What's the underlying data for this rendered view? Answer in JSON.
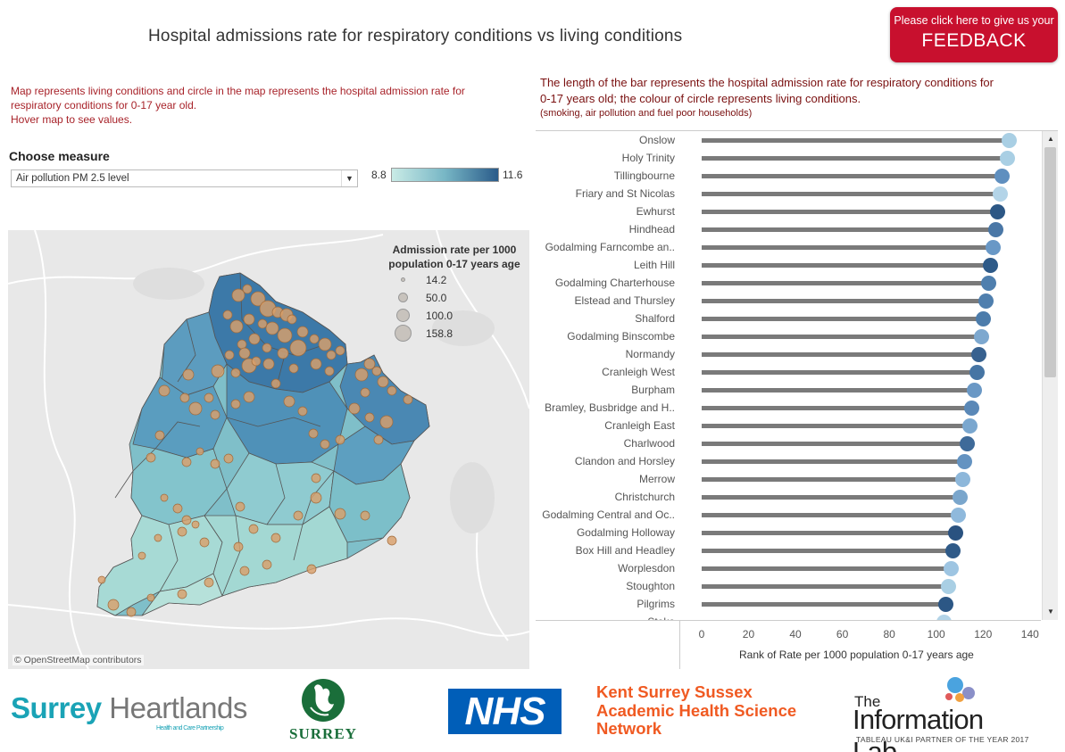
{
  "title": "Hospital admissions rate for respiratory conditions vs living conditions",
  "feedback": {
    "line1": "Please click here to give us your",
    "line2": "FEEDBACK"
  },
  "left_description": {
    "line1": "Map represents living conditions and circle in the map represents the hospital admission rate for",
    "line2": "respiratory conditions for 0-17 year old.",
    "line3": "Hover map to see values."
  },
  "measure": {
    "label": "Choose measure",
    "selected": "Air pollution PM 2.5 level"
  },
  "color_legend": {
    "min": "8.8",
    "max": "11.6",
    "colors": [
      "#c9ebe6",
      "#77b6c5",
      "#2a5b8a"
    ]
  },
  "size_legend": {
    "title_line1": "Admission rate per 1000",
    "title_line2": "population 0-17 years age",
    "values": [
      "14.2",
      "50.0",
      "100.0",
      "158.8"
    ]
  },
  "map": {
    "attribution": "© OpenStreetMap contributors",
    "bubble_color": "#d9a06b"
  },
  "right_description": {
    "line1": "The length of the bar represents the hospital admission rate for respiratory conditions for",
    "line2": "0-17 years old; the colour of circle represents living conditions.",
    "sub": "(smoking, air pollution and fuel poor households)"
  },
  "chart_data": {
    "type": "bar",
    "orientation": "horizontal",
    "xlabel": "Rank of Rate per 1000 population 0-17 years age",
    "xlim": [
      0,
      140
    ],
    "xticks": [
      0,
      20,
      40,
      60,
      80,
      100,
      120,
      140
    ],
    "categories": [
      "Onslow",
      "Holy Trinity",
      "Tillingbourne",
      "Friary and St Nicolas",
      "Ewhurst",
      "Hindhead",
      "Godalming Farncombe an..",
      "Leith Hill",
      "Godalming Charterhouse",
      "Elstead and Thursley",
      "Shalford",
      "Godalming Binscombe",
      "Normandy",
      "Cranleigh West",
      "Burpham",
      "Bramley, Busbridge and H..",
      "Cranleigh East",
      "Charlwood",
      "Clandon and Horsley",
      "Merrow",
      "Christchurch",
      "Godalming Central and Oc..",
      "Godalming Holloway",
      "Box Hill and Headley",
      "Worplesdon",
      "Stoughton",
      "Pilgrims",
      "Stoke"
    ],
    "values": [
      131,
      130,
      128,
      127,
      126,
      125,
      124,
      123,
      122,
      121,
      120,
      119,
      118,
      117,
      116,
      115,
      114,
      113,
      112,
      111,
      110,
      109,
      108,
      107,
      106,
      105,
      104,
      103
    ],
    "dot_colors": [
      "#a9cfe4",
      "#a9cfe4",
      "#5f8fbf",
      "#b3d4e8",
      "#2c5785",
      "#4a77a6",
      "#6998c6",
      "#2e5a88",
      "#4f7fae",
      "#4f7fae",
      "#4c7cab",
      "#7da8cf",
      "#37618f",
      "#4675a4",
      "#6a98c5",
      "#5a88b7",
      "#7aa7cf",
      "#3e6a99",
      "#6493c1",
      "#8db7da",
      "#7aa6cc",
      "#8fb9dc",
      "#2a5280",
      "#2f5a88",
      "#9ec5e2",
      "#a9cfe4",
      "#2c5785",
      "#b3d4e8"
    ],
    "grid": false
  },
  "logos": {
    "surrey_heartlands": {
      "part1": "Surrey",
      "part2": " Heartlands",
      "tagline": "Health and Care Partnership"
    },
    "surrey": "SURREY",
    "nhs": "NHS",
    "kss": [
      "Kent Surrey Sussex",
      "Academic Health Science",
      "Network"
    ],
    "info_lab": {
      "the": "The",
      "name": "Information Lab",
      "tagline": "TABLEAU UK&I PARTNER OF THE YEAR 2017"
    }
  }
}
